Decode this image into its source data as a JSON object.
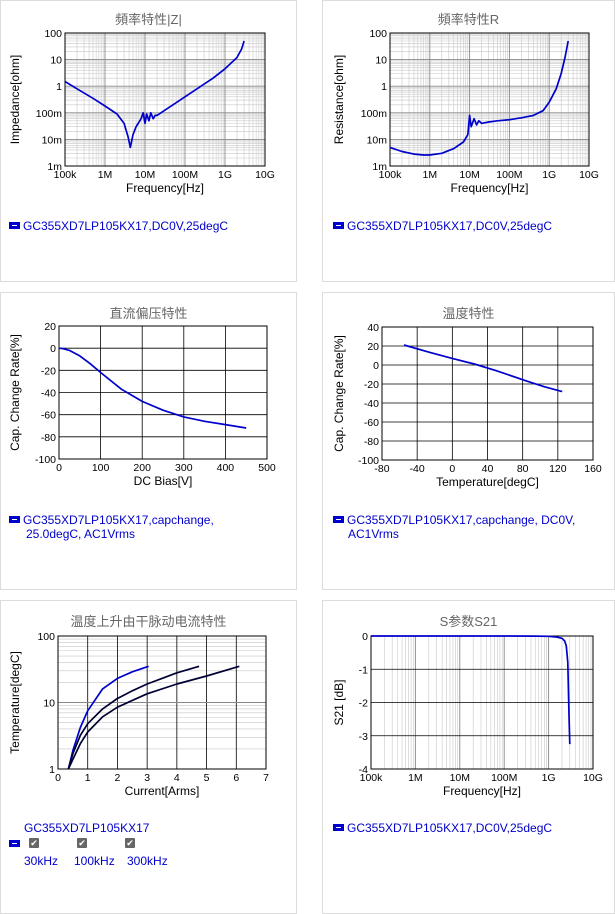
{
  "panels": [
    {
      "title": "頻率特性|Z|",
      "legend": "GC355XD7LP105KX17,DC0V,25degC"
    },
    {
      "title": "頻率特性R",
      "legend": "GC355XD7LP105KX17,DC0V,25degC"
    },
    {
      "title": "直流偏压特性",
      "legend_lines": [
        "GC355XD7LP105KX17,capchange,",
        "25.0degC, AC1Vrms"
      ]
    },
    {
      "title": "温度特性",
      "legend_lines": [
        "GC355XD7LP105KX17,capchange, DC0V,",
        "AC1Vrms"
      ]
    },
    {
      "title": "温度上升由干脉动电流特性",
      "legend": "GC355XD7LP105KX17",
      "checkbox_labels": [
        "30kHz",
        "100kHz",
        "300kHz"
      ],
      "check_glyph": "✔"
    },
    {
      "title": "S参数S21",
      "legend": "GC355XD7LP105KX17,DC0V,25degC"
    }
  ],
  "colors": {
    "series": "#0000cc",
    "series_dark": "#000033",
    "grid": "#c8c8c8",
    "grid_major": "#888888"
  },
  "chart_data": [
    {
      "type": "line",
      "title": "頻率特性|Z|",
      "xlabel": "Frequency[Hz]",
      "ylabel": "Impedance[ohm]",
      "xscale": "log",
      "yscale": "log",
      "xlim": [
        100000,
        10000000000
      ],
      "ylim": [
        0.001,
        100
      ],
      "xticks": [
        {
          "v": 100000,
          "t": "100k"
        },
        {
          "v": 1000000,
          "t": "1M"
        },
        {
          "v": 10000000,
          "t": "10M"
        },
        {
          "v": 100000000,
          "t": "100M"
        },
        {
          "v": 1000000000,
          "t": "1G"
        },
        {
          "v": 10000000000,
          "t": "10G"
        }
      ],
      "yticks": [
        {
          "v": 0.001,
          "t": "1m"
        },
        {
          "v": 0.01,
          "t": "10m"
        },
        {
          "v": 0.1,
          "t": "100m"
        },
        {
          "v": 1,
          "t": "1"
        },
        {
          "v": 10,
          "t": "10"
        },
        {
          "v": 100,
          "t": "100"
        }
      ],
      "series": [
        {
          "color": "#0000cc",
          "x": [
            100000,
            200000,
            500000,
            1000000,
            2000000,
            3000000,
            3800000,
            4300000,
            5000000,
            6000000,
            8000000,
            9000000,
            10000000,
            11000000,
            12500000,
            14000000,
            16000000,
            18000000,
            20000000,
            30000000,
            50000000,
            100000000,
            200000000,
            500000000,
            1000000000,
            2000000000,
            2600000000,
            3000000000
          ],
          "y": [
            1.5,
            0.8,
            0.35,
            0.18,
            0.09,
            0.04,
            0.012,
            0.005,
            0.015,
            0.03,
            0.06,
            0.1,
            0.04,
            0.09,
            0.05,
            0.1,
            0.06,
            0.08,
            0.08,
            0.12,
            0.2,
            0.4,
            0.8,
            2,
            4.5,
            12,
            25,
            50
          ]
        }
      ]
    },
    {
      "type": "line",
      "title": "頻率特性R",
      "xlabel": "Frequency[Hz]",
      "ylabel": "Resistance[ohm]",
      "xscale": "log",
      "yscale": "log",
      "xlim": [
        100000,
        10000000000
      ],
      "ylim": [
        0.001,
        100
      ],
      "xticks": [
        {
          "v": 100000,
          "t": "100k"
        },
        {
          "v": 1000000,
          "t": "1M"
        },
        {
          "v": 10000000,
          "t": "10M"
        },
        {
          "v": 100000000,
          "t": "100M"
        },
        {
          "v": 1000000000,
          "t": "1G"
        },
        {
          "v": 10000000000,
          "t": "10G"
        }
      ],
      "yticks": [
        {
          "v": 0.001,
          "t": "1m"
        },
        {
          "v": 0.01,
          "t": "10m"
        },
        {
          "v": 0.1,
          "t": "100m"
        },
        {
          "v": 1,
          "t": "1"
        },
        {
          "v": 10,
          "t": "10"
        },
        {
          "v": 100,
          "t": "100"
        }
      ],
      "series": [
        {
          "color": "#0000cc",
          "x": [
            100000,
            200000,
            400000,
            700000,
            1000000,
            2000000,
            4000000,
            7000000,
            9000000,
            10000000,
            11000000,
            13000000,
            15000000,
            17000000,
            20000000,
            30000000,
            50000000,
            100000000,
            200000000,
            400000000,
            700000000,
            1000000000,
            1500000000,
            2000000000,
            2500000000,
            3000000000
          ],
          "y": [
            0.005,
            0.0035,
            0.0028,
            0.0026,
            0.0026,
            0.003,
            0.0045,
            0.008,
            0.015,
            0.08,
            0.03,
            0.06,
            0.035,
            0.05,
            0.04,
            0.045,
            0.05,
            0.055,
            0.065,
            0.08,
            0.12,
            0.25,
            0.8,
            3,
            12,
            50
          ]
        }
      ]
    },
    {
      "type": "line",
      "title": "直流偏压特性",
      "xlabel": "DC Bias[V]",
      "ylabel": "Cap. Change Rate[%]",
      "xlim": [
        0,
        500
      ],
      "ylim": [
        -100,
        20
      ],
      "xticks": [
        {
          "v": 0,
          "t": "0"
        },
        {
          "v": 100,
          "t": "100"
        },
        {
          "v": 200,
          "t": "200"
        },
        {
          "v": 300,
          "t": "300"
        },
        {
          "v": 400,
          "t": "400"
        },
        {
          "v": 500,
          "t": "500"
        }
      ],
      "yticks": [
        {
          "v": 20,
          "t": "20"
        },
        {
          "v": 0,
          "t": "0"
        },
        {
          "v": -20,
          "t": "-20"
        },
        {
          "v": -40,
          "t": "-40"
        },
        {
          "v": -60,
          "t": "-60"
        },
        {
          "v": -80,
          "t": "-80"
        },
        {
          "v": -100,
          "t": "-100"
        }
      ],
      "series": [
        {
          "color": "#0000cc",
          "x": [
            0,
            10,
            25,
            50,
            75,
            100,
            150,
            200,
            250,
            300,
            350,
            400,
            450
          ],
          "y": [
            0,
            -0.5,
            -2,
            -7,
            -14,
            -22,
            -37,
            -48,
            -56,
            -62,
            -66,
            -69,
            -72
          ]
        }
      ]
    },
    {
      "type": "line",
      "title": "温度特性",
      "xlabel": "Temperature[degC]",
      "ylabel": "Cap. Change Rate[%]",
      "xlim": [
        -80,
        160
      ],
      "ylim": [
        -100,
        40
      ],
      "xticks": [
        {
          "v": -80,
          "t": "-80"
        },
        {
          "v": -40,
          "t": "-40"
        },
        {
          "v": 0,
          "t": "0"
        },
        {
          "v": 40,
          "t": "40"
        },
        {
          "v": 80,
          "t": "80"
        },
        {
          "v": 120,
          "t": "120"
        },
        {
          "v": 160,
          "t": "160"
        }
      ],
      "yticks": [
        {
          "v": 40,
          "t": "40"
        },
        {
          "v": 20,
          "t": "20"
        },
        {
          "v": 0,
          "t": "0"
        },
        {
          "v": -20,
          "t": "-20"
        },
        {
          "v": -40,
          "t": "-40"
        },
        {
          "v": -60,
          "t": "-60"
        },
        {
          "v": -80,
          "t": "-80"
        },
        {
          "v": -100,
          "t": "-100"
        }
      ],
      "series": [
        {
          "color": "#0000cc",
          "x": [
            -55,
            -25,
            0,
            25,
            50,
            85,
            105,
            125
          ],
          "y": [
            21,
            13,
            7,
            1,
            -6,
            -17,
            -23,
            -28
          ]
        }
      ]
    },
    {
      "type": "line",
      "title": "温度上升由干脉动电流特性",
      "xlabel": "Current[Arms]",
      "ylabel": "Temperature[degC]",
      "yscale": "log",
      "xlim": [
        0,
        7
      ],
      "ylim": [
        1,
        100
      ],
      "xticks": [
        {
          "v": 0,
          "t": "0"
        },
        {
          "v": 1,
          "t": "1"
        },
        {
          "v": 2,
          "t": "2"
        },
        {
          "v": 3,
          "t": "3"
        },
        {
          "v": 4,
          "t": "4"
        },
        {
          "v": 5,
          "t": "5"
        },
        {
          "v": 6,
          "t": "6"
        },
        {
          "v": 7,
          "t": "7"
        }
      ],
      "yticks": [
        {
          "v": 1,
          "t": "1"
        },
        {
          "v": 10,
          "t": "10"
        },
        {
          "v": 100,
          "t": "100"
        }
      ],
      "series": [
        {
          "name": "30kHz",
          "color": "#0000cc",
          "x": [
            0.35,
            0.5,
            0.75,
            1,
            1.5,
            2,
            2.5,
            3.05
          ],
          "y": [
            1,
            1.9,
            4.2,
            7.5,
            16,
            23,
            29,
            35
          ]
        },
        {
          "name": "100kHz",
          "color": "#000033",
          "x": [
            0.35,
            0.5,
            0.75,
            1,
            1.5,
            2,
            2.5,
            3,
            3.5,
            4,
            4.75
          ],
          "y": [
            1,
            1.7,
            3.2,
            4.8,
            8,
            11.5,
            15,
            19,
            23,
            28,
            35
          ]
        },
        {
          "name": "300kHz",
          "color": "#000033",
          "x": [
            0.35,
            0.5,
            0.75,
            1,
            1.5,
            2,
            3,
            4,
            5,
            6.1
          ],
          "y": [
            1,
            1.4,
            2.4,
            3.6,
            6.1,
            8.5,
            13.5,
            19,
            25,
            35
          ]
        }
      ]
    },
    {
      "type": "line",
      "title": "S参数S21",
      "xlabel": "Frequency[Hz]",
      "ylabel": "S21 [dB]",
      "xscale": "log",
      "xlim": [
        100000,
        10000000000
      ],
      "ylim": [
        -4,
        0
      ],
      "xticks": [
        {
          "v": 100000,
          "t": "100k"
        },
        {
          "v": 1000000,
          "t": "1M"
        },
        {
          "v": 10000000,
          "t": "10M"
        },
        {
          "v": 100000000,
          "t": "100M"
        },
        {
          "v": 1000000000,
          "t": "1G"
        },
        {
          "v": 10000000000,
          "t": "10G"
        }
      ],
      "yticks": [
        {
          "v": 0,
          "t": "0"
        },
        {
          "v": -1,
          "t": "-1"
        },
        {
          "v": -2,
          "t": "-2"
        },
        {
          "v": -3,
          "t": "-3"
        },
        {
          "v": -4,
          "t": "-4"
        }
      ],
      "series": [
        {
          "color": "#0000cc",
          "x": [
            100000,
            100000000,
            500000000,
            1000000000,
            1500000000,
            2000000000,
            2300000000,
            2500000000,
            2700000000,
            2900000000,
            3000000000
          ],
          "y": [
            0,
            0,
            -0.002,
            -0.01,
            -0.03,
            -0.07,
            -0.15,
            -0.3,
            -0.8,
            -2.5,
            -3.25
          ]
        }
      ]
    }
  ]
}
